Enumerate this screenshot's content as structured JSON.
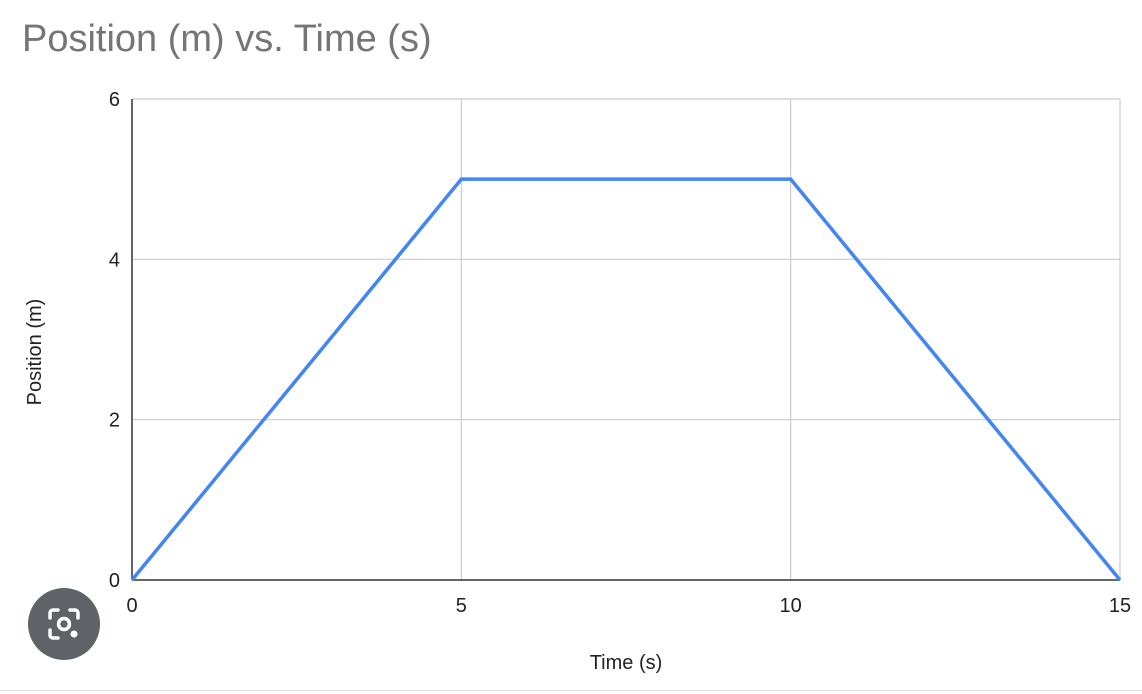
{
  "chart_data": {
    "type": "line",
    "title": "Position (m) vs. Time (s)",
    "xlabel": "Time (s)",
    "ylabel": "Position (m)",
    "xlim": [
      0,
      15
    ],
    "ylim": [
      0,
      6
    ],
    "xticks": [
      "0",
      "5",
      "10",
      "15"
    ],
    "yticks": [
      "0",
      "2",
      "4",
      "6"
    ],
    "grid": true,
    "legend": "none",
    "series": [
      {
        "color": "#4285F4",
        "points": [
          {
            "x": 0,
            "y": 0
          },
          {
            "x": 5,
            "y": 5
          },
          {
            "x": 10,
            "y": 5
          },
          {
            "x": 15,
            "y": 0
          }
        ]
      }
    ]
  },
  "overlay": {
    "lens_icon": "camera-search-icon"
  }
}
